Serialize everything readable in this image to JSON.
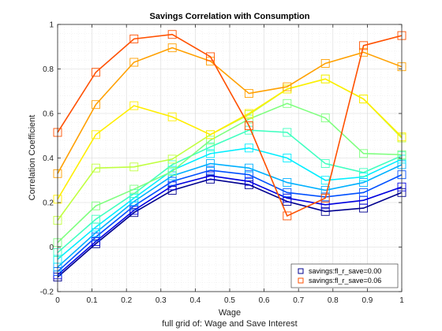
{
  "chart_data": {
    "type": "line",
    "title": "Savings Correlation with Consumption",
    "xlabel": "Wage",
    "ylabel": "Correlation Coefficient",
    "caption": "full grid of: Wage and Save Interest",
    "xlim": [
      0,
      1
    ],
    "ylim": [
      -0.2,
      1
    ],
    "xticks": [
      "0",
      "0.1",
      "0.2",
      "0.3",
      "0.4",
      "0.5",
      "0.6",
      "0.7",
      "0.8",
      "0.9",
      "1"
    ],
    "xtick_values": [
      0,
      0.1,
      0.2,
      0.3,
      0.4,
      0.5,
      0.6,
      0.7,
      0.8,
      0.9,
      1
    ],
    "yticks": [
      "-0.2",
      "0",
      "0.2",
      "0.4",
      "0.6",
      "0.8",
      "1"
    ],
    "ytick_values": [
      -0.2,
      0,
      0.2,
      0.4,
      0.6,
      0.8,
      1
    ],
    "grid": true,
    "marker": "square",
    "legend_position": "bottom-right",
    "x": [
      0,
      0.111,
      0.222,
      0.333,
      0.444,
      0.556,
      0.667,
      0.778,
      0.889,
      1
    ],
    "series": [
      {
        "name": "savings:fl_r_save=0.00",
        "color": "#00008f",
        "values": [
          -0.135,
          0.015,
          0.155,
          0.255,
          0.305,
          0.28,
          0.205,
          0.16,
          0.175,
          0.245
        ]
      },
      {
        "color": "#0000e0",
        "values": [
          -0.125,
          0.025,
          0.165,
          0.275,
          0.32,
          0.295,
          0.22,
          0.19,
          0.21,
          0.27
        ]
      },
      {
        "color": "#0050ff",
        "values": [
          -0.11,
          0.045,
          0.185,
          0.295,
          0.345,
          0.325,
          0.245,
          0.225,
          0.245,
          0.325
        ]
      },
      {
        "color": "#00b0ff",
        "values": [
          -0.09,
          0.065,
          0.205,
          0.32,
          0.375,
          0.355,
          0.29,
          0.255,
          0.29,
          0.37
        ]
      },
      {
        "color": "#00eeff",
        "values": [
          -0.055,
          0.09,
          0.22,
          0.345,
          0.42,
          0.445,
          0.4,
          0.3,
          0.315,
          0.395
        ]
      },
      {
        "color": "#40ffc0",
        "values": [
          -0.025,
          0.125,
          0.24,
          0.37,
          0.45,
          0.525,
          0.515,
          0.375,
          0.335,
          0.41
        ]
      },
      {
        "color": "#7fff7f",
        "values": [
          0.02,
          0.185,
          0.26,
          0.34,
          0.48,
          0.575,
          0.645,
          0.58,
          0.42,
          0.415
        ]
      },
      {
        "color": "#c0ff40",
        "values": [
          0.12,
          0.355,
          0.36,
          0.395,
          0.505,
          0.595,
          0.71,
          0.755,
          0.665,
          0.49
        ]
      },
      {
        "color": "#ffee00",
        "values": [
          0.215,
          0.505,
          0.635,
          0.585,
          0.505,
          0.6,
          0.71,
          0.755,
          0.665,
          0.495
        ]
      },
      {
        "color": "#ffa000",
        "values": [
          0.33,
          0.64,
          0.83,
          0.895,
          0.835,
          0.69,
          0.72,
          0.825,
          0.875,
          0.81
        ]
      },
      {
        "name": "savings:fl_r_save=0.06",
        "color": "#ff5000",
        "values": [
          0.515,
          0.785,
          0.935,
          0.955,
          0.855,
          0.545,
          0.14,
          0.22,
          0.905,
          0.95
        ]
      }
    ]
  }
}
